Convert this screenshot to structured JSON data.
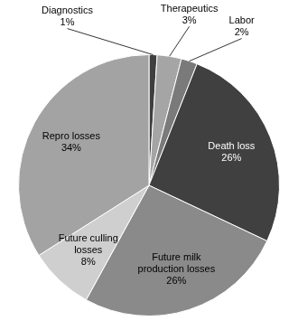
{
  "chart_data": {
    "type": "pie",
    "categories": [
      "Diagnostics",
      "Therapeutics",
      "Labor",
      "Death loss",
      "Future milk production losses",
      "Future culling losses",
      "Repro losses"
    ],
    "values": [
      1,
      3,
      2,
      26,
      26,
      8,
      34
    ],
    "value_labels": [
      "1%",
      "3%",
      "2%",
      "26%",
      "26%",
      "8%",
      "34%"
    ],
    "colors": [
      "#3f3f3f",
      "#a5a5a5",
      "#7a7a7a",
      "#404040",
      "#8a8a8a",
      "#cfcfcf",
      "#a3a3a3"
    ],
    "data_labels": true
  }
}
